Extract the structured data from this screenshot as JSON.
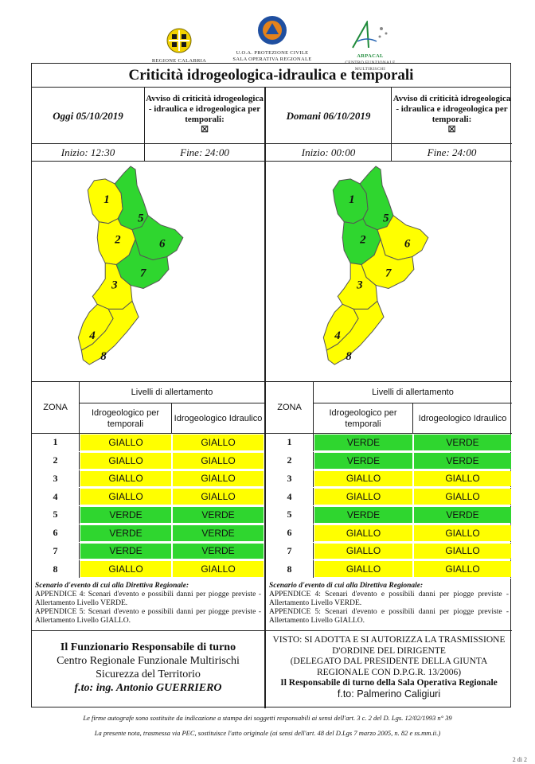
{
  "logos": {
    "regione": "REGIONE CALABRIA",
    "uoa_line1": "U.O.A. PROTEZIONE CIVILE",
    "uoa_line2": "SALA OPERATIVA REGIONALE",
    "arpacal": "ARPACAL",
    "arpacal_sub": "CENTRO FUNZIONALE MULTIRISCHI"
  },
  "title": "Criticità idrogeologica-idraulica e temporali",
  "today": {
    "date": "Oggi 05/10/2019",
    "notice": "Avviso di criticità idrogeologica - idraulica e idrogeologica per temporali:",
    "checkbox": "☒",
    "start": "Inizio: 12:30",
    "end": "Fine: 24:00",
    "zones_header": "ZONA",
    "levels_header": "Livelli di allertamento",
    "col1": "Idrogeologico per temporali",
    "col2": "Idrogeologico Idraulico",
    "rows": [
      {
        "zona": "1",
        "a": "GIALLO",
        "b": "GIALLO"
      },
      {
        "zona": "2",
        "a": "GIALLO",
        "b": "GIALLO"
      },
      {
        "zona": "3",
        "a": "GIALLO",
        "b": "GIALLO"
      },
      {
        "zona": "4",
        "a": "GIALLO",
        "b": "GIALLO"
      },
      {
        "zona": "5",
        "a": "VERDE",
        "b": "VERDE"
      },
      {
        "zona": "6",
        "a": "VERDE",
        "b": "VERDE"
      },
      {
        "zona": "7",
        "a": "VERDE",
        "b": "VERDE"
      },
      {
        "zona": "8",
        "a": "GIALLO",
        "b": "GIALLO"
      }
    ],
    "scenario_h": "Scenario d'evento di cui alla Direttiva Regionale:",
    "scenario_1": "APPENDICE 4: Scenari d'evento e possibili danni per piogge previste - Allertamento Livello VERDE.",
    "scenario_2": "APPENDICE 5: Scenari d'evento e possibili danni per piogge previste - Allertamento Livello GIALLO."
  },
  "tomorrow": {
    "date": "Domani 06/10/2019",
    "notice": "Avviso di criticità idrogeologica - idraulica e idrogeologica per temporali:",
    "checkbox": "☒",
    "start": "Inizio: 00:00",
    "end": "Fine: 24:00",
    "zones_header": "ZONA",
    "levels_header": "Livelli di allertamento",
    "col1": "Idrogeologico per temporali",
    "col2": "Idrogeologico Idraulico",
    "rows": [
      {
        "zona": "1",
        "a": "VERDE",
        "b": "VERDE"
      },
      {
        "zona": "2",
        "a": "VERDE",
        "b": "VERDE"
      },
      {
        "zona": "3",
        "a": "GIALLO",
        "b": "GIALLO"
      },
      {
        "zona": "4",
        "a": "GIALLO",
        "b": "GIALLO"
      },
      {
        "zona": "5",
        "a": "VERDE",
        "b": "VERDE"
      },
      {
        "zona": "6",
        "a": "GIALLO",
        "b": "GIALLO"
      },
      {
        "zona": "7",
        "a": "GIALLO",
        "b": "GIALLO"
      },
      {
        "zona": "8",
        "a": "GIALLO",
        "b": "GIALLO"
      }
    ],
    "scenario_h": "Scenario d'evento di cui alla Direttiva Regionale:",
    "scenario_1": "APPENDICE 4: Scenari d'evento e possibili danni per piogge previste - Allertamento Livello VERDE.",
    "scenario_2": "APPENDICE 5: Scenari d'evento e possibili danni per piogge previste - Allertamento Livello GIALLO."
  },
  "colors": {
    "GIALLO": "#ffff00",
    "VERDE": "#2fd62f"
  },
  "signature_left": {
    "l1": "Il Funzionario Responsabile di turno",
    "l2": "Centro Regionale Funzionale Multirischi",
    "l3": "Sicurezza del Territorio",
    "l4": "f.to: ing. Antonio GUERRIERO"
  },
  "signature_right": {
    "l1": "VISTO: SI ADOTTA E SI AUTORIZZA LA TRASMISSIONE",
    "l2": "D'ORDINE DEL DIRIGENTE",
    "l3": "(DELEGATO DAL PRESIDENTE DELLA GIUNTA",
    "l4": "REGIONALE CON D.P.G.R. 13/2006)",
    "l5": "Il Responsabile di turno della Sala Operativa Regionale",
    "l6": "f.to: Palmerino Caligiuri"
  },
  "footer": {
    "f1": "Le firme autografe sono sostituite da indicazione a stampa dei soggetti responsabili ai sensi dell'art. 3 c. 2 del D. Lgs. 12/02/1993 n° 39",
    "f2": "La presente nota, trasmessa via PEC, sostituisce l'atto originale (ai sensi dell'art. 48 del D.Lgs 7 marzo 2005, n. 82 e ss.mm.ii.)"
  },
  "page": "2 di 2"
}
